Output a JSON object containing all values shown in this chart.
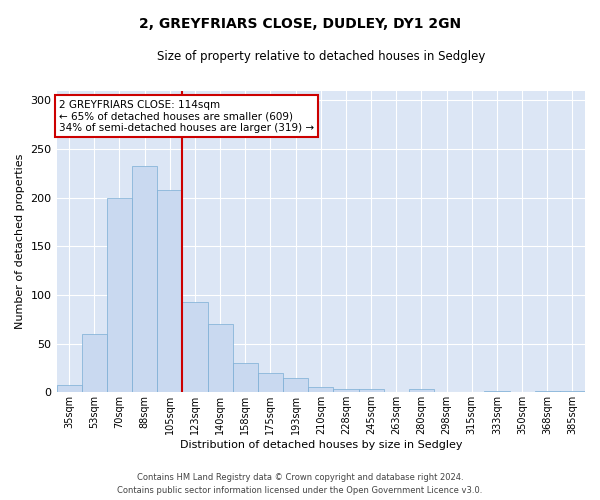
{
  "title1": "2, GREYFRIARS CLOSE, DUDLEY, DY1 2GN",
  "title2": "Size of property relative to detached houses in Sedgley",
  "xlabel": "Distribution of detached houses by size in Sedgley",
  "ylabel": "Number of detached properties",
  "bar_color": "#c9d9f0",
  "bar_edge_color": "#7aadd4",
  "background_color": "#dce6f5",
  "categories": [
    "35sqm",
    "53sqm",
    "70sqm",
    "88sqm",
    "105sqm",
    "123sqm",
    "140sqm",
    "158sqm",
    "175sqm",
    "193sqm",
    "210sqm",
    "228sqm",
    "245sqm",
    "263sqm",
    "280sqm",
    "298sqm",
    "315sqm",
    "333sqm",
    "350sqm",
    "368sqm",
    "385sqm"
  ],
  "values": [
    7,
    60,
    200,
    233,
    208,
    93,
    70,
    30,
    20,
    15,
    5,
    3,
    3,
    0,
    3,
    0,
    0,
    1,
    0,
    1,
    1
  ],
  "ylim": [
    0,
    310
  ],
  "yticks": [
    0,
    50,
    100,
    150,
    200,
    250,
    300
  ],
  "property_line_index": 4,
  "annotation_text": "2 GREYFRIARS CLOSE: 114sqm\n← 65% of detached houses are smaller (609)\n34% of semi-detached houses are larger (319) →",
  "annotation_box_color": "#ffffff",
  "annotation_box_edge": "#cc0000",
  "red_line_color": "#cc0000",
  "footer1": "Contains HM Land Registry data © Crown copyright and database right 2024.",
  "footer2": "Contains public sector information licensed under the Open Government Licence v3.0.",
  "fig_width": 6.0,
  "fig_height": 5.0
}
